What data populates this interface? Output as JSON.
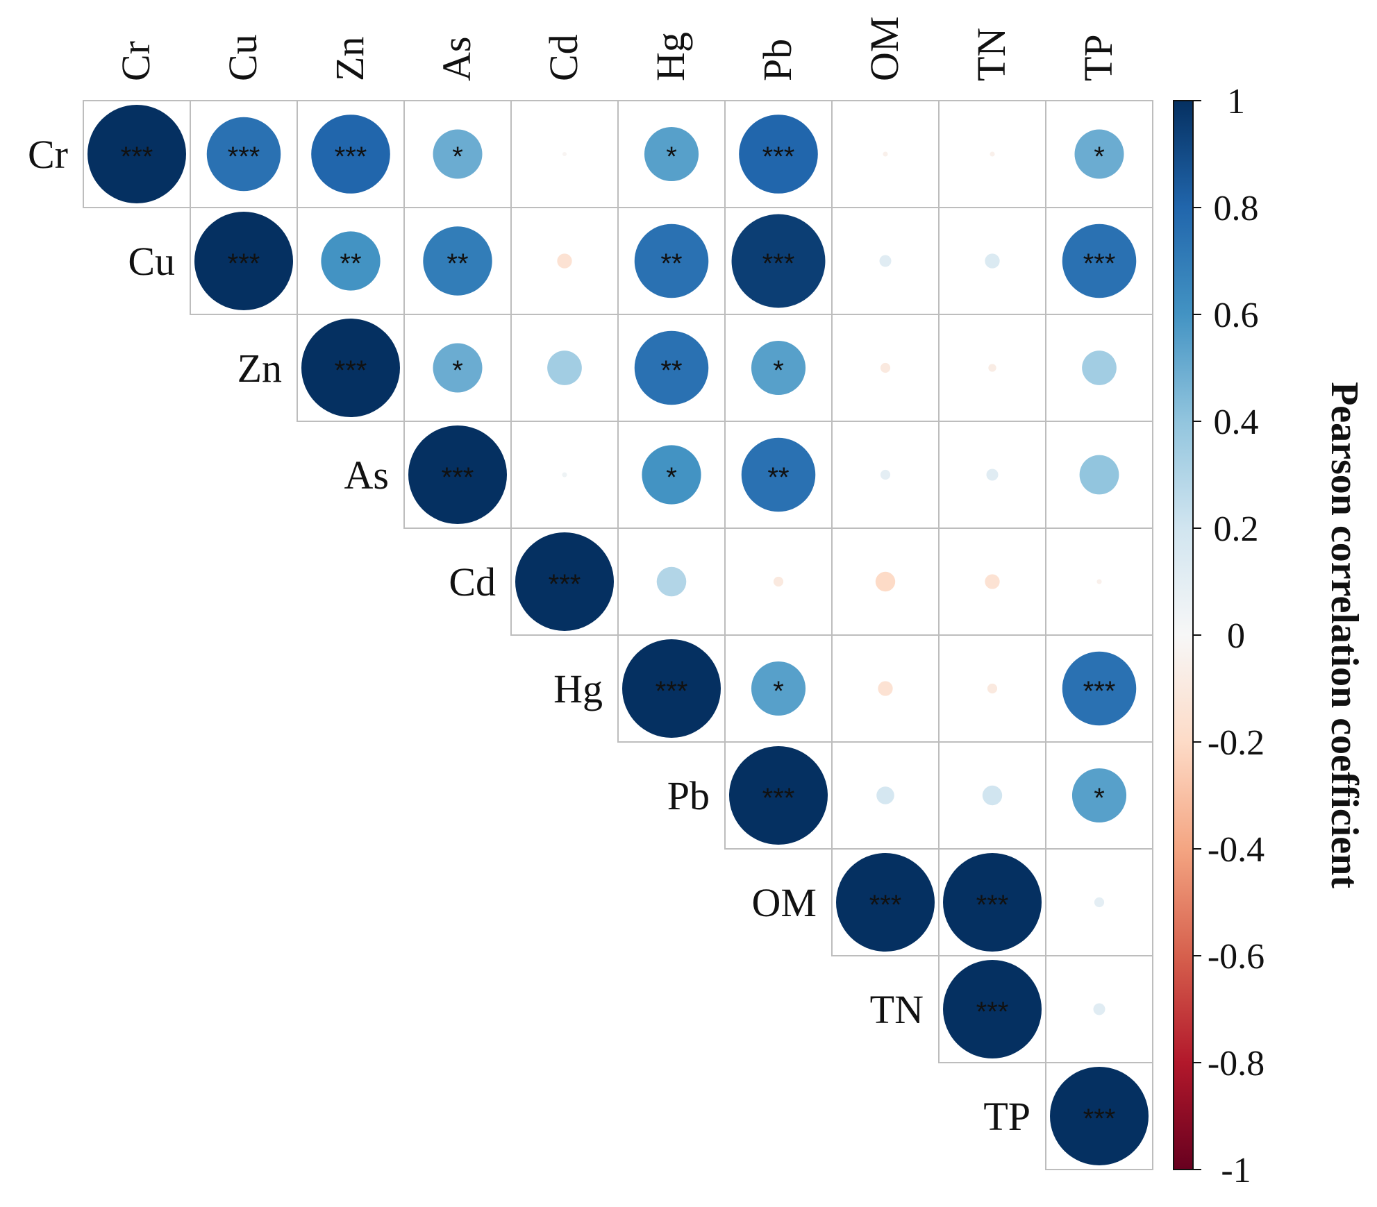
{
  "chart_data": {
    "type": "heatmap",
    "style": "upper-triangle correlation matrix with circles",
    "variables": [
      "Cr",
      "Cu",
      "Zn",
      "As",
      "Cd",
      "Hg",
      "Pb",
      "OM",
      "TN",
      "TP"
    ],
    "matrix": [
      [
        1.0,
        0.75,
        0.8,
        0.5,
        -0.02,
        0.55,
        0.8,
        -0.05,
        -0.05,
        0.5
      ],
      [
        0.75,
        1.0,
        0.6,
        0.7,
        -0.15,
        0.75,
        0.95,
        0.12,
        0.15,
        0.75
      ],
      [
        0.8,
        0.6,
        1.0,
        0.5,
        0.35,
        0.75,
        0.55,
        -0.1,
        -0.08,
        0.35
      ],
      [
        0.5,
        0.7,
        0.5,
        1.0,
        0.05,
        0.6,
        0.75,
        0.1,
        0.12,
        0.4
      ],
      [
        -0.02,
        -0.15,
        0.35,
        0.05,
        1.0,
        0.3,
        -0.1,
        -0.2,
        -0.15,
        -0.05
      ],
      [
        0.55,
        0.75,
        0.75,
        0.6,
        0.3,
        1.0,
        0.55,
        -0.15,
        -0.1,
        0.75
      ],
      [
        0.8,
        0.95,
        0.55,
        0.75,
        -0.1,
        0.55,
        1.0,
        0.18,
        0.2,
        0.55
      ],
      [
        -0.05,
        0.12,
        -0.1,
        0.1,
        -0.2,
        -0.15,
        0.18,
        1.0,
        1.0,
        0.1
      ],
      [
        -0.05,
        0.15,
        -0.08,
        0.12,
        -0.15,
        -0.1,
        0.2,
        1.0,
        1.0,
        0.12
      ],
      [
        0.5,
        0.75,
        0.35,
        0.4,
        -0.05,
        0.75,
        0.55,
        0.1,
        0.12,
        1.0
      ]
    ],
    "significance": [
      [
        "***",
        "***",
        "***",
        "*",
        "",
        "*",
        "***",
        "",
        "",
        "*"
      ],
      [
        "***",
        "***",
        "**",
        "**",
        "",
        "**",
        "***",
        "",
        "",
        "***"
      ],
      [
        "***",
        "**",
        "***",
        "*",
        "",
        "**",
        "*",
        "",
        "",
        ""
      ],
      [
        "*",
        "**",
        "*",
        "***",
        "",
        "*",
        "**",
        "",
        "",
        ""
      ],
      [
        "",
        "",
        "",
        "",
        "***",
        "",
        "",
        "",
        "",
        ""
      ],
      [
        "*",
        "**",
        "**",
        "*",
        "",
        "***",
        "*",
        "",
        "",
        "***"
      ],
      [
        "***",
        "***",
        "*",
        "**",
        "",
        "*",
        "***",
        "",
        "",
        "*"
      ],
      [
        "",
        "",
        "",
        "",
        "",
        "",
        "",
        "***",
        "***",
        ""
      ],
      [
        "",
        "",
        "",
        "",
        "",
        "",
        "",
        "***",
        "***",
        ""
      ],
      [
        "*",
        "***",
        "",
        "",
        "",
        "***",
        "*",
        "",
        "",
        "***"
      ]
    ],
    "colorbar": {
      "label": "Pearson correlation coefficient",
      "ticks": [
        "1",
        "0.8",
        "0.6",
        "0.4",
        "0.2",
        "0",
        "-0.2",
        "-0.4",
        "-0.6",
        "-0.8",
        "-1"
      ],
      "range": [
        -1,
        1
      ],
      "colors": [
        "#67001f",
        "#b2182b",
        "#d6604d",
        "#f4a582",
        "#fddbc7",
        "#f7f7f7",
        "#d1e5f0",
        "#92c5de",
        "#4393c3",
        "#2166ac",
        "#053061"
      ]
    }
  }
}
